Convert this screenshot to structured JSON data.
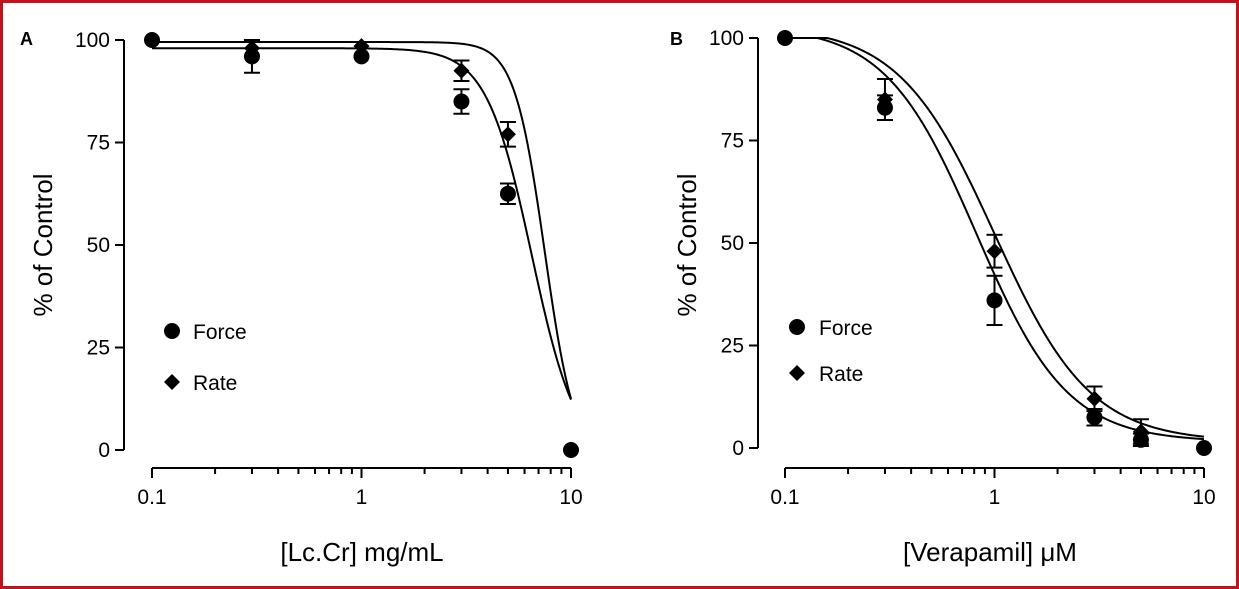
{
  "figure": {
    "frame_color": "#c0141c",
    "ink_color": "#000000"
  },
  "chart_data": [
    {
      "panel": "A",
      "type": "scatter",
      "title": "",
      "xlabel": "[Lc.Cr] mg/mL",
      "ylabel": "% of Control",
      "x_scale": "log",
      "xlim": [
        0.1,
        10
      ],
      "ylim": [
        0,
        100
      ],
      "x_ticks": [
        {
          "value": 0.1,
          "label": "0.1"
        },
        {
          "value": 1,
          "label": "1"
        },
        {
          "value": 10,
          "label": "10"
        }
      ],
      "y_ticks": [
        {
          "value": 0,
          "label": "0"
        },
        {
          "value": 25,
          "label": "25"
        },
        {
          "value": 50,
          "label": "50"
        },
        {
          "value": 75,
          "label": "75"
        },
        {
          "value": 100,
          "label": "100"
        }
      ],
      "grid": false,
      "legend_position": "lower-left",
      "series": [
        {
          "name": "Force",
          "marker": "circle",
          "points": [
            {
              "x": 0.1,
              "y": 100,
              "err": 0
            },
            {
              "x": 0.3,
              "y": 96,
              "err": 4
            },
            {
              "x": 1,
              "y": 96,
              "err": 0
            },
            {
              "x": 3,
              "y": 85,
              "err": 3
            },
            {
              "x": 5,
              "y": 62.5,
              "err": 2.5
            },
            {
              "x": 10,
              "y": 0,
              "err": 0
            }
          ],
          "fit": {
            "top": 98,
            "bottom": -3,
            "ec50": 6.5,
            "hill": 4.0
          }
        },
        {
          "name": "Rate",
          "marker": "diamond",
          "points": [
            {
              "x": 0.1,
              "y": 100,
              "err": 0
            },
            {
              "x": 0.3,
              "y": 98,
              "err": 2
            },
            {
              "x": 1,
              "y": 98.5,
              "err": 0
            },
            {
              "x": 3,
              "y": 92.5,
              "err": 2.5
            },
            {
              "x": 5,
              "y": 77,
              "err": 3
            },
            {
              "x": 10,
              "y": 0,
              "err": 0
            }
          ],
          "fit": {
            "top": 99.5,
            "bottom": -3,
            "ec50": 7.5,
            "hill": 6.0
          }
        }
      ]
    },
    {
      "panel": "B",
      "type": "scatter",
      "title": "",
      "xlabel": "[Verapamil] μM",
      "ylabel": "% of Control",
      "x_scale": "log",
      "xlim": [
        0.1,
        10
      ],
      "ylim": [
        0,
        100
      ],
      "x_ticks": [
        {
          "value": 0.1,
          "label": "0.1"
        },
        {
          "value": 1,
          "label": "1"
        },
        {
          "value": 10,
          "label": "10"
        }
      ],
      "y_ticks": [
        {
          "value": 0,
          "label": "0"
        },
        {
          "value": 25,
          "label": "25"
        },
        {
          "value": 50,
          "label": "50"
        },
        {
          "value": 75,
          "label": "75"
        },
        {
          "value": 100,
          "label": "100"
        }
      ],
      "grid": false,
      "legend_position": "lower-left",
      "series": [
        {
          "name": "Force",
          "marker": "circle",
          "points": [
            {
              "x": 0.1,
              "y": 100,
              "err": 0
            },
            {
              "x": 0.3,
              "y": 83,
              "err": 3
            },
            {
              "x": 1,
              "y": 36,
              "err": 6
            },
            {
              "x": 3,
              "y": 7.5,
              "err": 2
            },
            {
              "x": 5,
              "y": 2,
              "err": 1.5
            },
            {
              "x": 10,
              "y": 0,
              "err": 0
            }
          ],
          "fit": {
            "top": 103,
            "bottom": 1.5,
            "ec50": 0.82,
            "hill": 2.0
          }
        },
        {
          "name": "Rate",
          "marker": "diamond",
          "points": [
            {
              "x": 0.1,
              "y": 100,
              "err": 0
            },
            {
              "x": 0.3,
              "y": 85,
              "err": 5
            },
            {
              "x": 1,
              "y": 48,
              "err": 4
            },
            {
              "x": 3,
              "y": 12,
              "err": 3
            },
            {
              "x": 5,
              "y": 4,
              "err": 3
            },
            {
              "x": 10,
              "y": 0,
              "err": 0
            }
          ],
          "fit": {
            "top": 103,
            "bottom": 1.5,
            "ec50": 1.0,
            "hill": 1.9
          }
        }
      ]
    }
  ]
}
